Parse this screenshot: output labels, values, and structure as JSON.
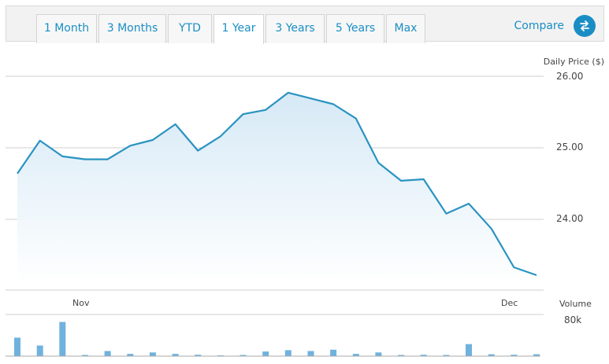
{
  "toolbar": {
    "tabs": [
      {
        "label": "1 Month"
      },
      {
        "label": "3 Months"
      },
      {
        "label": "YTD"
      },
      {
        "label": "1 Year",
        "active": true
      },
      {
        "label": "3 Years"
      },
      {
        "label": "5 Years"
      },
      {
        "label": "Max"
      }
    ],
    "compare_label": "Compare",
    "compare_icon": "swap-arrows-icon"
  },
  "colors": {
    "accent": "#1a8ec4",
    "line": "#2a93c1",
    "volume_bar": "#6fb2dd",
    "gridline": "#cfcfcf"
  },
  "chart_data": [
    {
      "type": "area",
      "ylabel": "Daily Price ($)",
      "ylim": [
        23.0,
        26.0
      ],
      "yticks": [
        "26.00",
        "25.00",
        "24.00"
      ],
      "x_tick_labels": [
        "Nov",
        "Dec"
      ],
      "grid": true,
      "values": [
        24.64,
        25.1,
        24.88,
        24.84,
        24.84,
        25.03,
        25.11,
        25.33,
        24.96,
        25.16,
        25.47,
        25.53,
        25.77,
        25.69,
        25.61,
        25.41,
        24.79,
        24.54,
        24.56,
        24.08,
        24.22,
        23.87,
        23.33,
        23.22
      ]
    },
    {
      "type": "bar",
      "ylabel": "Volume",
      "yticks": [
        "80k"
      ],
      "ylim": [
        0,
        80000
      ],
      "values": [
        40000,
        23000,
        74000,
        2000,
        11000,
        5000,
        8000,
        5000,
        3000,
        0,
        2000,
        10000,
        13000,
        11000,
        14000,
        5000,
        8000,
        2000,
        3000,
        2000,
        26000,
        4000,
        3000,
        4000
      ]
    }
  ]
}
